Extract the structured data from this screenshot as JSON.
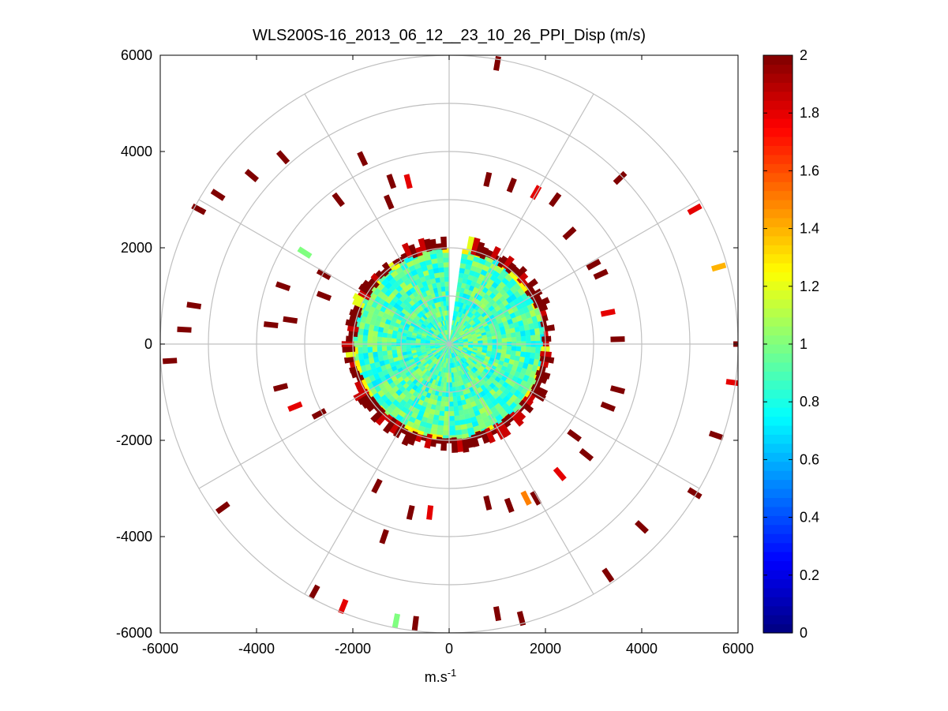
{
  "chart_data": {
    "type": "heatmap",
    "subtype": "polar-ppi",
    "title": "WLS200S-16_2013_06_12__23_10_26_PPI_Disp (m/s)",
    "xlabel_base": "m.s",
    "xlabel_exp": "-1",
    "xlim": [
      -6000,
      6000
    ],
    "ylim": [
      -6000,
      6000
    ],
    "xticks": [
      -6000,
      -4000,
      -2000,
      0,
      2000,
      4000,
      6000
    ],
    "yticks": [
      -6000,
      -4000,
      -2000,
      0,
      2000,
      4000,
      6000
    ],
    "xtick_labels": [
      "-6000",
      "-4000",
      "-2000",
      "0",
      "2000",
      "4000",
      "6000"
    ],
    "ytick_labels": [
      "-6000",
      "-4000",
      "-2000",
      "0",
      "2000",
      "4000",
      "6000"
    ],
    "range_rings": [
      1000,
      2000,
      3000,
      4000,
      5000,
      6000
    ],
    "spoke_angles_deg": [
      0,
      30,
      60,
      90,
      120,
      150,
      180,
      210,
      240,
      270,
      300,
      330
    ],
    "grid": true,
    "colorbar": {
      "colormap": "jet",
      "min": 0,
      "max": 2,
      "ticks": [
        0,
        0.2,
        0.4,
        0.6,
        0.8,
        1,
        1.2,
        1.4,
        1.6,
        1.8,
        2
      ],
      "tick_labels": [
        "0",
        "0.2",
        "0.4",
        "0.6",
        "0.8",
        "1",
        "1.2",
        "1.4",
        "1.6",
        "1.8",
        "2"
      ],
      "placement": "right"
    },
    "core": {
      "r_max": 2000,
      "value_range": [
        0.7,
        1.1
      ],
      "empty_sector_deg": [
        0,
        8
      ]
    },
    "edge_band": {
      "r_range": [
        1900,
        2300
      ],
      "value": 2.0
    },
    "scattered_cells": [
      {
        "x": -4800,
        "y": 3100,
        "value": 2.0
      },
      {
        "x": -3450,
        "y": 3880,
        "value": 2.0
      },
      {
        "x": -4100,
        "y": 3500,
        "value": 2.0
      },
      {
        "x": -5200,
        "y": 2800,
        "value": 2.0
      },
      {
        "x": -1200,
        "y": 3380,
        "value": 2.0
      },
      {
        "x": -850,
        "y": 3380,
        "value": 1.8
      },
      {
        "x": -1800,
        "y": 3850,
        "value": 2.0
      },
      {
        "x": 1000,
        "y": 5830,
        "value": 2.0
      },
      {
        "x": 800,
        "y": 3420,
        "value": 2.0
      },
      {
        "x": 1300,
        "y": 3300,
        "value": 2.0
      },
      {
        "x": 1800,
        "y": 3150,
        "value": 1.8
      },
      {
        "x": 2200,
        "y": 3000,
        "value": 2.0
      },
      {
        "x": 3550,
        "y": 3450,
        "value": 2.0
      },
      {
        "x": 5100,
        "y": 2800,
        "value": 1.8
      },
      {
        "x": 5600,
        "y": 1600,
        "value": 1.4
      },
      {
        "x": 6050,
        "y": 0,
        "value": 2.0
      },
      {
        "x": 5900,
        "y": -800,
        "value": 1.8
      },
      {
        "x": 5550,
        "y": -1900,
        "value": 2.0
      },
      {
        "x": 5100,
        "y": -3100,
        "value": 2.0
      },
      {
        "x": 4000,
        "y": -3800,
        "value": 2.0
      },
      {
        "x": 3300,
        "y": -4800,
        "value": 2.0
      },
      {
        "x": 1500,
        "y": -5700,
        "value": 2.0
      },
      {
        "x": 1000,
        "y": -5600,
        "value": 2.0
      },
      {
        "x": -700,
        "y": -5800,
        "value": 2.0
      },
      {
        "x": -1100,
        "y": -5750,
        "value": 1.0
      },
      {
        "x": -2200,
        "y": -5450,
        "value": 1.8
      },
      {
        "x": -2800,
        "y": -5150,
        "value": 2.0
      },
      {
        "x": -4700,
        "y": -3400,
        "value": 2.0
      },
      {
        "x": -3000,
        "y": 1900,
        "value": 1.0
      },
      {
        "x": -5800,
        "y": -350,
        "value": 2.0
      },
      {
        "x": -5500,
        "y": 300,
        "value": 2.0
      },
      {
        "x": -5300,
        "y": 800,
        "value": 2.0
      },
      {
        "x": -3300,
        "y": 500,
        "value": 2.0
      },
      {
        "x": -3500,
        "y": -900,
        "value": 2.0
      },
      {
        "x": -3200,
        "y": -1300,
        "value": 1.8
      },
      {
        "x": -2700,
        "y": -1450,
        "value": 2.0
      },
      {
        "x": -2300,
        "y": 3000,
        "value": 2.0
      },
      {
        "x": -1500,
        "y": -2950,
        "value": 2.0
      },
      {
        "x": -800,
        "y": -3500,
        "value": 2.0
      },
      {
        "x": -400,
        "y": -3500,
        "value": 1.8
      },
      {
        "x": 800,
        "y": -3300,
        "value": 2.0
      },
      {
        "x": 1800,
        "y": -3200,
        "value": 2.0
      },
      {
        "x": 2300,
        "y": -2700,
        "value": 1.8
      },
      {
        "x": 2850,
        "y": -2300,
        "value": 2.0
      },
      {
        "x": 3300,
        "y": -1300,
        "value": 2.0
      },
      {
        "x": 3500,
        "y": -950,
        "value": 2.0
      },
      {
        "x": 3500,
        "y": 100,
        "value": 2.0
      },
      {
        "x": 3300,
        "y": 650,
        "value": 1.8
      },
      {
        "x": 3150,
        "y": 1450,
        "value": 2.0
      },
      {
        "x": 3000,
        "y": 1650,
        "value": 2.0
      },
      {
        "x": 2500,
        "y": 2300,
        "value": 2.0
      },
      {
        "x": 1600,
        "y": -3200,
        "value": 1.5
      },
      {
        "x": -1350,
        "y": -4000,
        "value": 2.0
      },
      {
        "x": 1250,
        "y": -3350,
        "value": 2.0
      },
      {
        "x": 2600,
        "y": -1900,
        "value": 2.0
      },
      {
        "x": -2600,
        "y": 1450,
        "value": 2.0
      },
      {
        "x": -2600,
        "y": 1000,
        "value": 2.0
      },
      {
        "x": -3450,
        "y": 1200,
        "value": 2.0
      },
      {
        "x": -3700,
        "y": 400,
        "value": 2.0
      },
      {
        "x": -1250,
        "y": 2950,
        "value": 2.0
      }
    ]
  }
}
